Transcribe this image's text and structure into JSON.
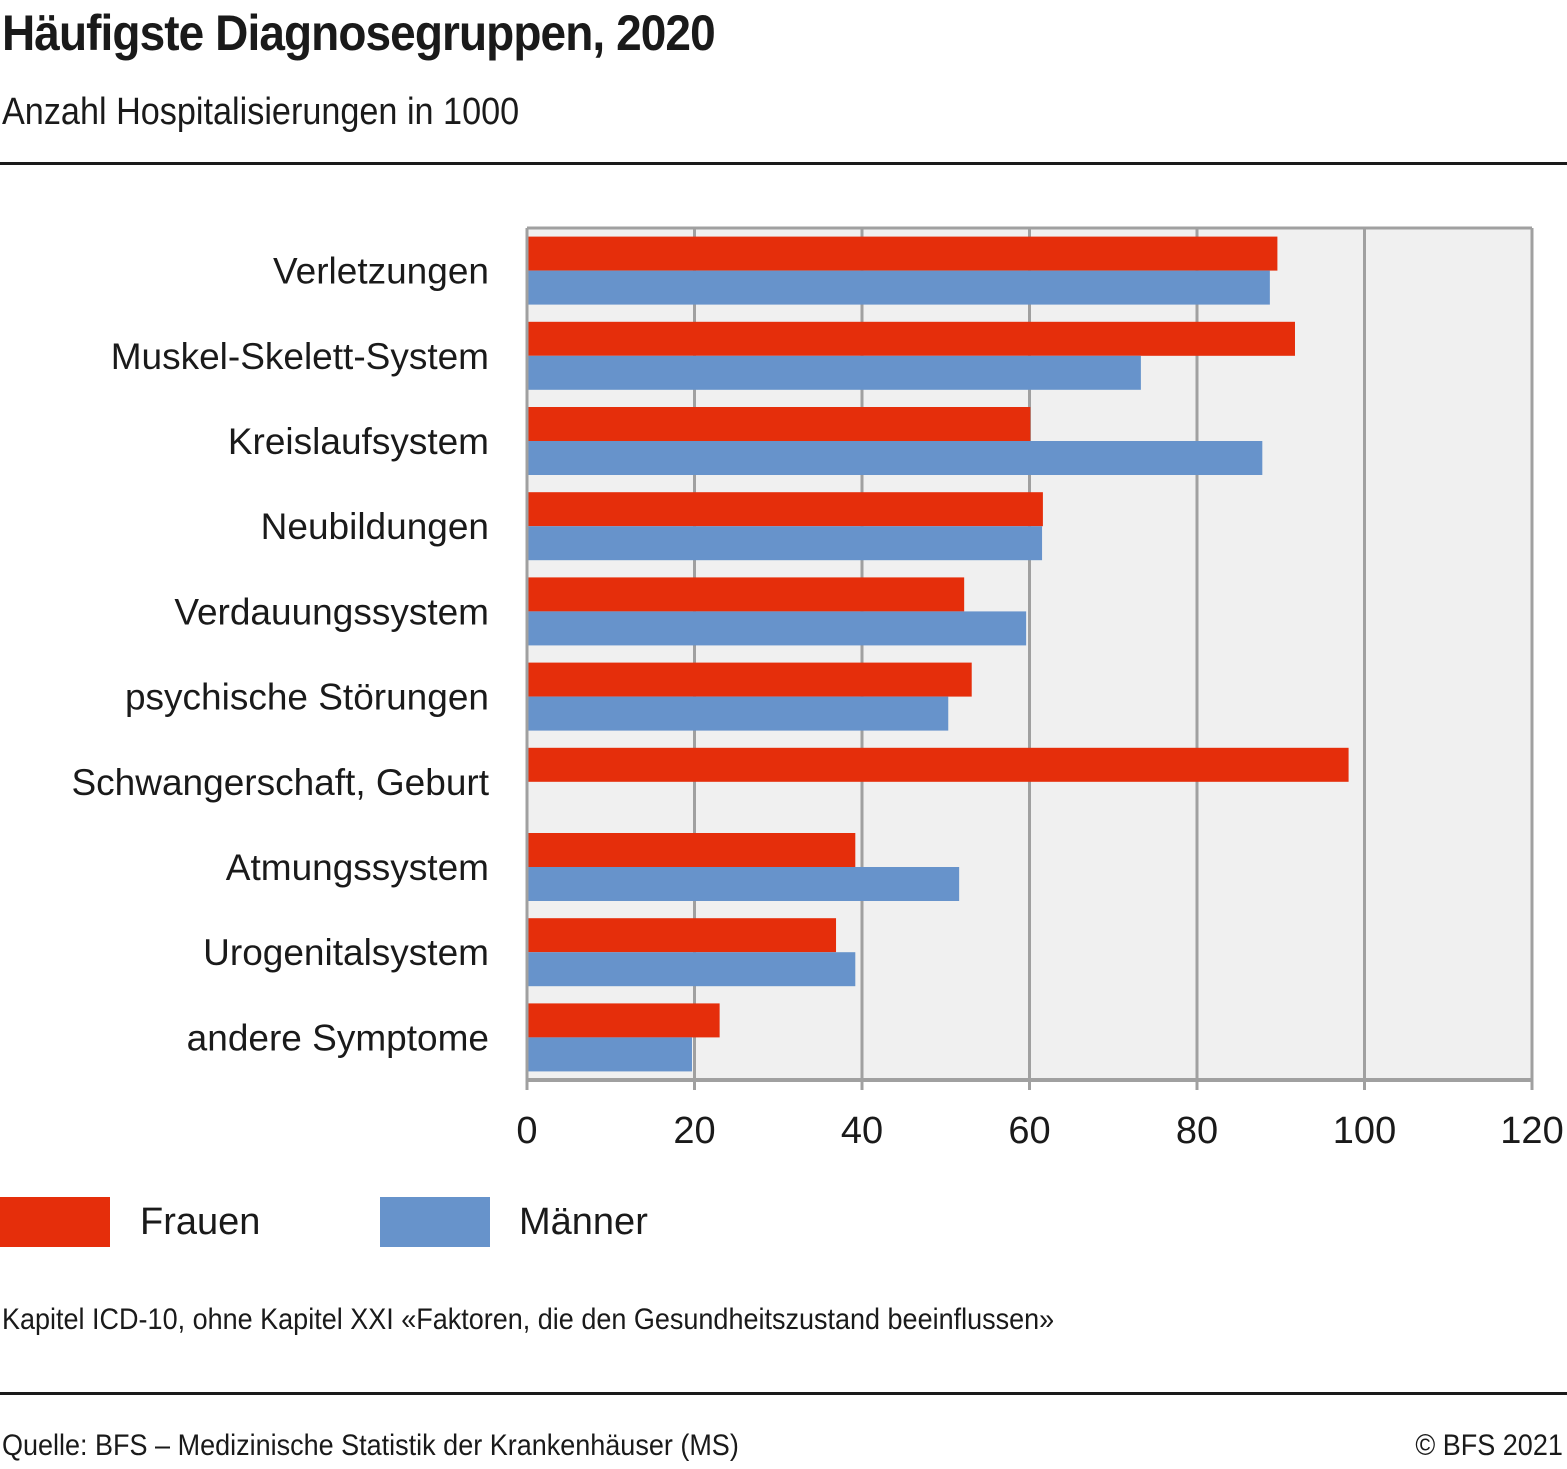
{
  "header": {
    "title": "Häufigste Diagnosegruppen, 2020",
    "subtitle": "Anzahl Hospitalisierungen in 1000"
  },
  "legend": {
    "items": [
      {
        "label": "Frauen",
        "color": "#e52e0b"
      },
      {
        "label": "Männer",
        "color": "#6793cb"
      }
    ]
  },
  "footer": {
    "note": "Kapitel ICD-10, ohne Kapitel XXI «Faktoren, die den Gesundheitszustand beeinflussen»",
    "source": "Quelle: BFS – Medizinische Statistik der Krankenhäuser (MS)",
    "copyright": "© BFS 2021"
  },
  "colors": {
    "frauen": "#e52e0b",
    "maenner": "#6793cb",
    "plot_background": "#f0f0f0",
    "grid": "#a0a0a0"
  },
  "chart_data": {
    "type": "bar",
    "orientation": "horizontal",
    "title": "Häufigste Diagnosegruppen, 2020",
    "subtitle": "Anzahl Hospitalisierungen in 1000",
    "xlabel": "",
    "ylabel": "",
    "xlim": [
      0,
      120
    ],
    "xticks": [
      0,
      20,
      40,
      60,
      80,
      100,
      120
    ],
    "grid": true,
    "legend_position": "bottom-left",
    "categories": [
      "Verletzungen",
      "Muskel-Skelett-System",
      "Kreislaufsystem",
      "Neubildungen",
      "Verdauungssystem",
      "psychische Störungen",
      "Schwangerschaft, Geburt",
      "Atmungssystem",
      "Urogenitalsystem",
      "andere Symptome"
    ],
    "series": [
      {
        "name": "Frauen",
        "color": "#e52e0b",
        "values": [
          89.6,
          91.7,
          60.1,
          61.6,
          52.2,
          53.1,
          98.1,
          39.2,
          36.9,
          23.0
        ]
      },
      {
        "name": "Männer",
        "color": "#6793cb",
        "values": [
          88.7,
          73.3,
          87.8,
          61.5,
          59.6,
          50.3,
          null,
          51.6,
          39.2,
          19.7
        ]
      }
    ]
  }
}
